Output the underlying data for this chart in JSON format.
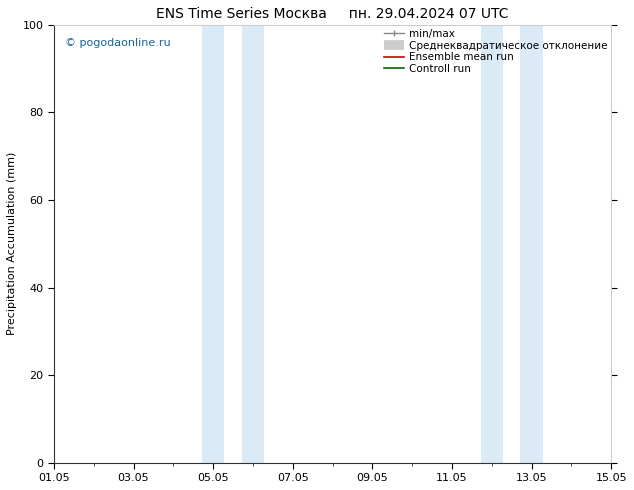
{
  "title": "ENS Time Series Москва     пн. 29.04.2024 07 UTC",
  "ylabel": "Precipitation Accumulation (mm)",
  "ylim": [
    0,
    100
  ],
  "xlim": [
    0,
    14
  ],
  "xtick_labels": [
    "01.05",
    "03.05",
    "05.05",
    "07.05",
    "09.05",
    "11.05",
    "13.05",
    "15.05"
  ],
  "xtick_positions": [
    0,
    2,
    4,
    6,
    8,
    10,
    12,
    14
  ],
  "ytick_labels": [
    "0",
    "20",
    "40",
    "60",
    "80",
    "100"
  ],
  "ytick_positions": [
    0,
    20,
    40,
    60,
    80,
    100
  ],
  "shaded_bands": [
    {
      "xmin": 3.72,
      "xmax": 4.28,
      "color": "#daeaf7"
    },
    {
      "xmin": 4.72,
      "xmax": 5.28,
      "color": "#daeaf7"
    },
    {
      "xmin": 10.72,
      "xmax": 11.28,
      "color": "#daeaf7"
    },
    {
      "xmin": 11.72,
      "xmax": 12.28,
      "color": "#daeaf7"
    }
  ],
  "watermark": "© pogodaonline.ru",
  "watermark_color": "#1a6699",
  "background_color": "#ffffff",
  "title_fontsize": 10,
  "axis_fontsize": 8,
  "tick_fontsize": 8,
  "legend_fontsize": 7.5
}
